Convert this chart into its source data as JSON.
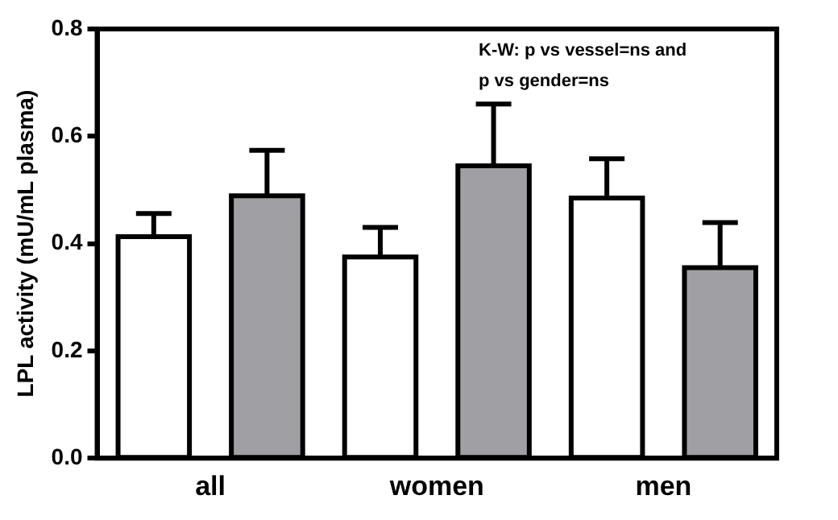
{
  "chart_data": {
    "type": "bar",
    "ylabel": "LPL activity (mU/mL plasma)",
    "categories": [
      "all",
      "women",
      "men"
    ],
    "series": [
      {
        "color": "#ffffff",
        "values": [
          0.413,
          0.375,
          0.485
        ],
        "errors": [
          [
            0.413,
            0.456
          ],
          [
            0.375,
            0.43
          ],
          [
            0.485,
            0.558
          ]
        ]
      },
      {
        "color": "#a0a0a4",
        "values": [
          0.489,
          0.545,
          0.355
        ],
        "errors": [
          [
            0.489,
            0.574
          ],
          [
            0.545,
            0.66
          ],
          [
            0.355,
            0.439
          ]
        ]
      }
    ],
    "ylim": [
      0,
      0.8
    ],
    "yticks": [
      {
        "value": 0,
        "label": "0.0"
      },
      0.2,
      0.4,
      0.6,
      0.8
    ],
    "grid": false,
    "legend": false,
    "annotations": [
      "K-W: p vs vessel=ns and\np vs gender=ns"
    ]
  }
}
